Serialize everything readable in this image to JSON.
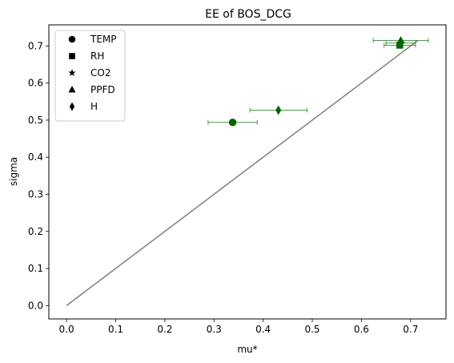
{
  "chart_data": {
    "type": "scatter",
    "title": "EE of BOS_DCG",
    "xlabel": "mu*",
    "ylabel": "sigma",
    "xlim": [
      -0.036,
      0.772
    ],
    "ylim": [
      -0.036,
      0.757
    ],
    "xticks": [
      0.0,
      0.1,
      0.2,
      0.3,
      0.4,
      0.5,
      0.6,
      0.7
    ],
    "xtick_labels": [
      "0.0",
      "0.1",
      "0.2",
      "0.3",
      "0.4",
      "0.5",
      "0.6",
      "0.7"
    ],
    "yticks": [
      0.0,
      0.1,
      0.2,
      0.3,
      0.4,
      0.5,
      0.6,
      0.7
    ],
    "ytick_labels": [
      "0.0",
      "0.1",
      "0.2",
      "0.3",
      "0.4",
      "0.5",
      "0.6",
      "0.7"
    ],
    "grid": false,
    "legend_position": "top-left",
    "reference_line": {
      "x": [
        0.0,
        0.715
      ],
      "y": [
        0.0,
        0.715
      ],
      "color": "#808080"
    },
    "point_color": "#006400",
    "errorbar_color": "#3a8a3a",
    "series": [
      {
        "name": "TEMP",
        "marker": "circle",
        "x": 0.338,
        "y": 0.494,
        "xerr": 0.05
      },
      {
        "name": "RH",
        "marker": "square",
        "x": 0.678,
        "y": 0.702,
        "xerr": 0.032
      },
      {
        "name": "CO2",
        "marker": "star",
        "x": 0.68,
        "y": 0.708,
        "xerr": 0.03
      },
      {
        "name": "PPFD",
        "marker": "triangle",
        "x": 0.68,
        "y": 0.715,
        "xerr": 0.056
      },
      {
        "name": "H",
        "marker": "diamond",
        "x": 0.431,
        "y": 0.527,
        "xerr": 0.058
      }
    ]
  }
}
